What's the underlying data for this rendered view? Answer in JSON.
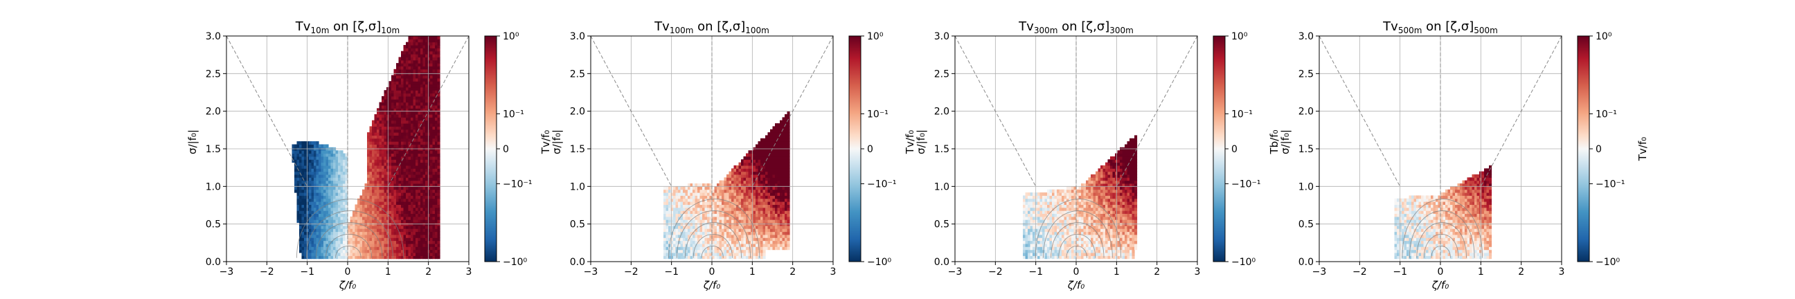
{
  "figure": {
    "panel_count": 4
  },
  "chart_data": [
    {
      "type": "heatmap",
      "title_main": "Tv",
      "title_sub": "10m",
      "title_mid": " on [ζ,σ]",
      "title_tail": "10m",
      "xlabel": "ζ/f₀",
      "ylabel": "σ/|f₀|",
      "xlim": [
        -3,
        3
      ],
      "ylim": [
        0,
        3
      ],
      "xticks": [
        "−3",
        "−2",
        "−1",
        "0",
        "1",
        "2",
        "3"
      ],
      "yticks": [
        "0.0",
        "0.5",
        "1.0",
        "1.5",
        "2.0",
        "2.5",
        "3.0"
      ],
      "colorbar_label": "",
      "colorbar_ticks": [
        "10⁰",
        "10⁻¹",
        "0",
        "−10⁻¹",
        "−10⁰"
      ],
      "colorbar_range": [
        -1,
        1
      ],
      "colorbar_scale": "symlog",
      "colormap": "RdBu_r",
      "grid": true,
      "reference_lines": "dashed |ζ|=σ cone and ζ=0 line",
      "contours": "grey joint-PDF contours"
    },
    {
      "type": "heatmap",
      "title_main": "Tv",
      "title_sub": "100m",
      "title_mid": " on [ζ,σ]",
      "title_tail": "100m",
      "xlabel": "ζ/f₀",
      "ylabel": "σ/|f₀|",
      "ylabel_upper": "Tv/f₀",
      "xlim": [
        -3,
        3
      ],
      "ylim": [
        0,
        3
      ],
      "xticks": [
        "−3",
        "−2",
        "−1",
        "0",
        "1",
        "2",
        "3"
      ],
      "yticks": [
        "0.0",
        "0.5",
        "1.0",
        "1.5",
        "2.0",
        "2.5",
        "3.0"
      ],
      "colorbar_label": "",
      "colorbar_ticks": [
        "10⁰",
        "10⁻¹",
        "0",
        "−10⁻¹",
        "−10⁰"
      ],
      "colorbar_range": [
        -1,
        1
      ],
      "colorbar_scale": "symlog",
      "colormap": "RdBu_r",
      "grid": true
    },
    {
      "type": "heatmap",
      "title_main": "Tv",
      "title_sub": "300m",
      "title_mid": " on [ζ,σ]",
      "title_tail": "300m",
      "xlabel": "ζ/f₀",
      "ylabel": "σ/|f₀|",
      "ylabel_upper": "Tv/f₀",
      "xlim": [
        -3,
        3
      ],
      "ylim": [
        0,
        3
      ],
      "xticks": [
        "−3",
        "−2",
        "−1",
        "0",
        "1",
        "2",
        "3"
      ],
      "yticks": [
        "0.0",
        "0.5",
        "1.0",
        "1.5",
        "2.0",
        "2.5",
        "3.0"
      ],
      "colorbar_label": "",
      "colorbar_ticks": [
        "10⁰",
        "10⁻¹",
        "0",
        "−10⁻¹",
        "−10⁰"
      ],
      "colorbar_range": [
        -1,
        1
      ],
      "colorbar_scale": "symlog",
      "colormap": "RdBu_r",
      "grid": true
    },
    {
      "type": "heatmap",
      "title_main": "Tv",
      "title_sub": "500m",
      "title_mid": " on [ζ,σ]",
      "title_tail": "500m",
      "xlabel": "ζ/f₀",
      "ylabel": "σ/|f₀|",
      "ylabel_upper": "Tb/f₀",
      "xlim": [
        -3,
        3
      ],
      "ylim": [
        0,
        3
      ],
      "xticks": [
        "−3",
        "−2",
        "−1",
        "0",
        "1",
        "2",
        "3"
      ],
      "yticks": [
        "0.0",
        "0.5",
        "1.0",
        "1.5",
        "2.0",
        "2.5",
        "3.0"
      ],
      "colorbar_label": "Tv/f₀",
      "colorbar_ticks": [
        "10⁰",
        "10⁻¹",
        "0",
        "−10⁻¹",
        "−10⁰"
      ],
      "colorbar_range": [
        -1,
        1
      ],
      "colorbar_scale": "symlog",
      "colormap": "RdBu_r",
      "grid": true
    }
  ],
  "colors": {
    "red_dark": "#67001f",
    "red": "#b2182b",
    "red_mid": "#d6604d",
    "red_light": "#f4a582",
    "pink": "#fddbc7",
    "white": "#f7f7f7",
    "blue_pale": "#d1e5f0",
    "blue_light": "#92c5de",
    "blue_mid": "#4393c3",
    "blue": "#2166ac",
    "blue_dark": "#053061",
    "grid": "#b0b0b0",
    "contour": "#7f7f7f"
  }
}
